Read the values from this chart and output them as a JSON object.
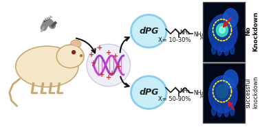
{
  "bg_color": "#ffffff",
  "dpg_circle_color": "#c8eef8",
  "dpg_circle_edge": "#88ccee",
  "top_label": "No\nKnockdown",
  "bottom_label": "successful\nknockdown",
  "top_x_range": "X= 10-30%",
  "bottom_x_range": "X= 50-90%",
  "arrow_color": "#111111",
  "mouse_body_color": "#f5e8c8",
  "siRNA_colors": [
    "#9966cc",
    "#7744aa",
    "#cc66cc"
  ],
  "plus_color": "#dd2222",
  "mouse_ear_color": "#e8c8a0"
}
